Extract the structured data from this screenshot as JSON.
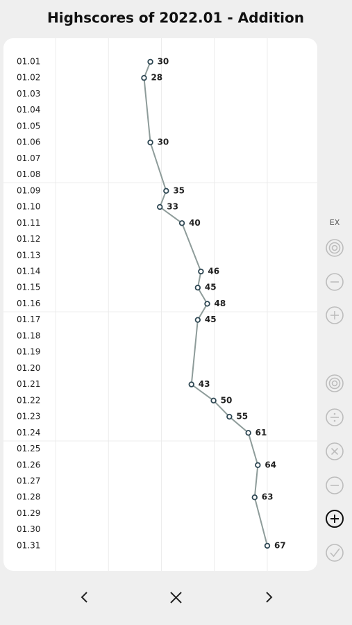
{
  "chart_data": {
    "type": "line",
    "orientation": "horizontal",
    "title": "Highscores of 2022.01 - Addition",
    "categories": [
      "01.01",
      "01.02",
      "01.03",
      "01.04",
      "01.05",
      "01.06",
      "01.07",
      "01.08",
      "01.09",
      "01.10",
      "01.11",
      "01.12",
      "01.13",
      "01.14",
      "01.15",
      "01.16",
      "01.17",
      "01.18",
      "01.19",
      "01.20",
      "01.21",
      "01.22",
      "01.23",
      "01.24",
      "01.25",
      "01.26",
      "01.27",
      "01.28",
      "01.29",
      "01.30",
      "01.31"
    ],
    "values": [
      30,
      28,
      null,
      null,
      null,
      30,
      null,
      null,
      35,
      33,
      40,
      null,
      null,
      46,
      45,
      48,
      45,
      null,
      null,
      null,
      43,
      50,
      55,
      61,
      null,
      64,
      null,
      63,
      null,
      null,
      67
    ],
    "color": "#8e9c9a",
    "marker_color": "#2e4753",
    "xlim": [
      0,
      67
    ],
    "xticks": [
      0,
      16.75,
      33.5,
      50.25,
      67
    ],
    "grid": true
  },
  "sidebar": {
    "label": "EX"
  }
}
